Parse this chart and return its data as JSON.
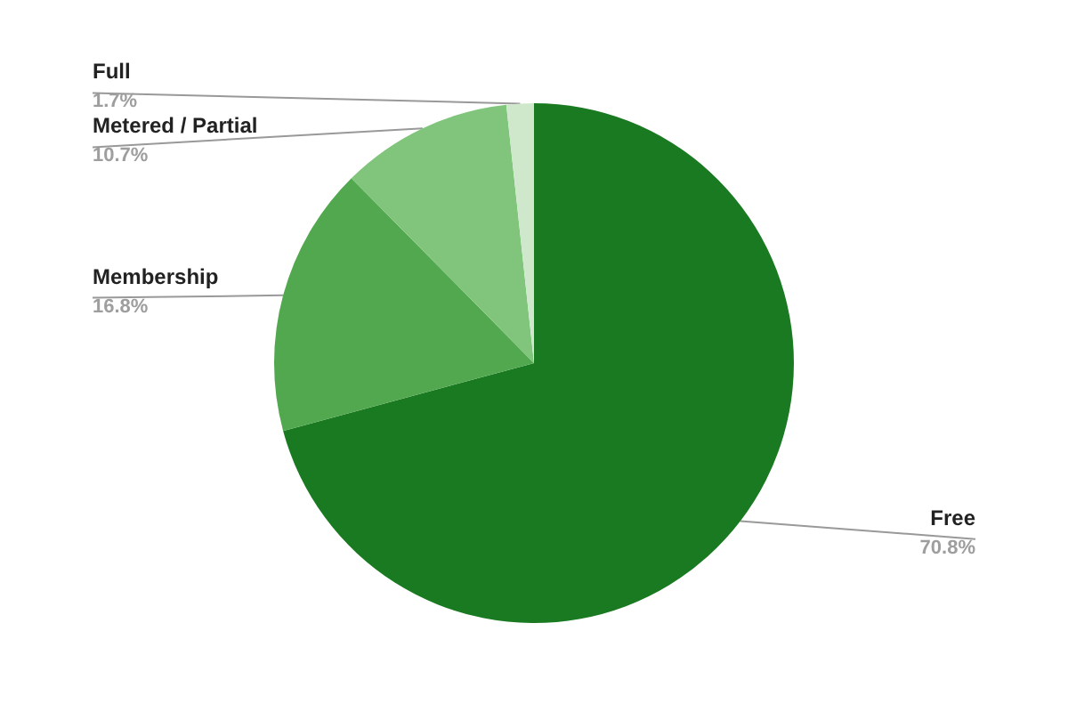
{
  "chart_data": {
    "type": "pie",
    "categories": [
      "Free",
      "Membership",
      "Metered / Partial",
      "Full"
    ],
    "values": [
      70.8,
      16.8,
      10.7,
      1.7
    ],
    "value_labels": [
      "70.8%",
      "16.8%",
      "10.7%",
      "1.7%"
    ],
    "colors": [
      "#1a7a21",
      "#52a84f",
      "#80c57b",
      "#cfe8cc"
    ],
    "legend": false
  }
}
